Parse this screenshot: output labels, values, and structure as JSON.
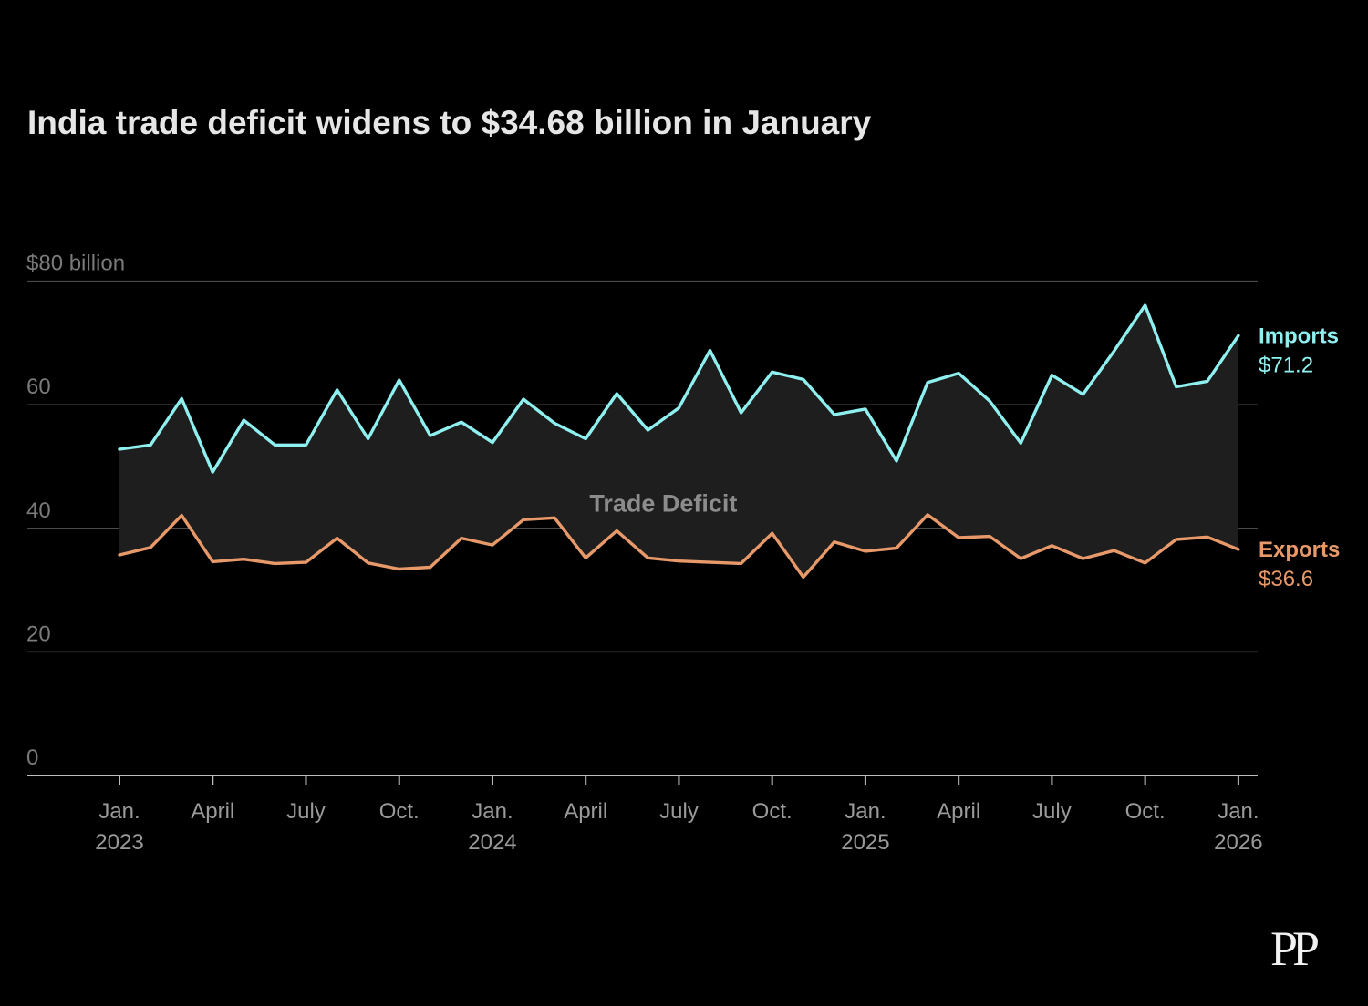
{
  "logo": "PP",
  "chart_data": {
    "type": "line",
    "title": "India trade deficit widens to $34.68 billion in January",
    "y_axis_title": "$80 billion",
    "ylim": [
      0,
      80
    ],
    "y_ticks": [
      0,
      20,
      40,
      60,
      80
    ],
    "y_tick_labels": [
      "0",
      "20",
      "40",
      "60",
      "$80 billion"
    ],
    "grid": true,
    "x_ticks": [
      {
        "index": 0,
        "label": "Jan.",
        "year": "2023"
      },
      {
        "index": 3,
        "label": "April",
        "year": ""
      },
      {
        "index": 6,
        "label": "July",
        "year": ""
      },
      {
        "index": 9,
        "label": "Oct.",
        "year": ""
      },
      {
        "index": 12,
        "label": "Jan.",
        "year": "2024"
      },
      {
        "index": 15,
        "label": "April",
        "year": ""
      },
      {
        "index": 18,
        "label": "July",
        "year": ""
      },
      {
        "index": 21,
        "label": "Oct.",
        "year": ""
      },
      {
        "index": 24,
        "label": "Jan.",
        "year": "2025"
      },
      {
        "index": 27,
        "label": "April",
        "year": ""
      },
      {
        "index": 30,
        "label": "July",
        "year": ""
      },
      {
        "index": 33,
        "label": "Oct.",
        "year": ""
      },
      {
        "index": 36,
        "label": "Jan.",
        "year": "2026"
      }
    ],
    "x": [
      "2023-01",
      "2023-02",
      "2023-03",
      "2023-04",
      "2023-05",
      "2023-06",
      "2023-07",
      "2023-08",
      "2023-09",
      "2023-10",
      "2023-11",
      "2023-12",
      "2024-01",
      "2024-02",
      "2024-03",
      "2024-04",
      "2024-05",
      "2024-06",
      "2024-07",
      "2024-08",
      "2024-09",
      "2024-10",
      "2024-11",
      "2024-12",
      "2025-01",
      "2025-02",
      "2025-03",
      "2025-04",
      "2025-05",
      "2025-06",
      "2025-07",
      "2025-08",
      "2025-09",
      "2025-10",
      "2025-11",
      "2025-12",
      "2026-01"
    ],
    "series": [
      {
        "name": "Imports",
        "color": "#8ff0f0",
        "last_label": "$71.2",
        "values": [
          52.8,
          53.5,
          61.0,
          49.1,
          57.5,
          53.5,
          53.5,
          62.4,
          54.5,
          64.0,
          55.0,
          57.2,
          53.9,
          60.9,
          57.0,
          54.5,
          61.8,
          55.9,
          59.5,
          68.8,
          58.7,
          65.3,
          64.1,
          58.4,
          59.3,
          50.9,
          63.6,
          65.1,
          60.6,
          53.8,
          64.8,
          61.7,
          68.7,
          76.1,
          62.9,
          63.8,
          71.2
        ]
      },
      {
        "name": "Exports",
        "color": "#e8996a",
        "last_label": "$36.6",
        "values": [
          35.7,
          36.9,
          42.1,
          34.6,
          35.0,
          34.3,
          34.5,
          38.4,
          34.4,
          33.4,
          33.7,
          38.4,
          37.3,
          41.4,
          41.7,
          35.2,
          39.6,
          35.2,
          34.7,
          34.5,
          34.3,
          39.2,
          32.1,
          37.8,
          36.3,
          36.8,
          42.2,
          38.5,
          38.7,
          35.1,
          37.2,
          35.1,
          36.4,
          34.4,
          38.2,
          38.6,
          36.6
        ]
      }
    ],
    "band_label": "Trade Deficit",
    "band_color": "#1e1e1e"
  }
}
